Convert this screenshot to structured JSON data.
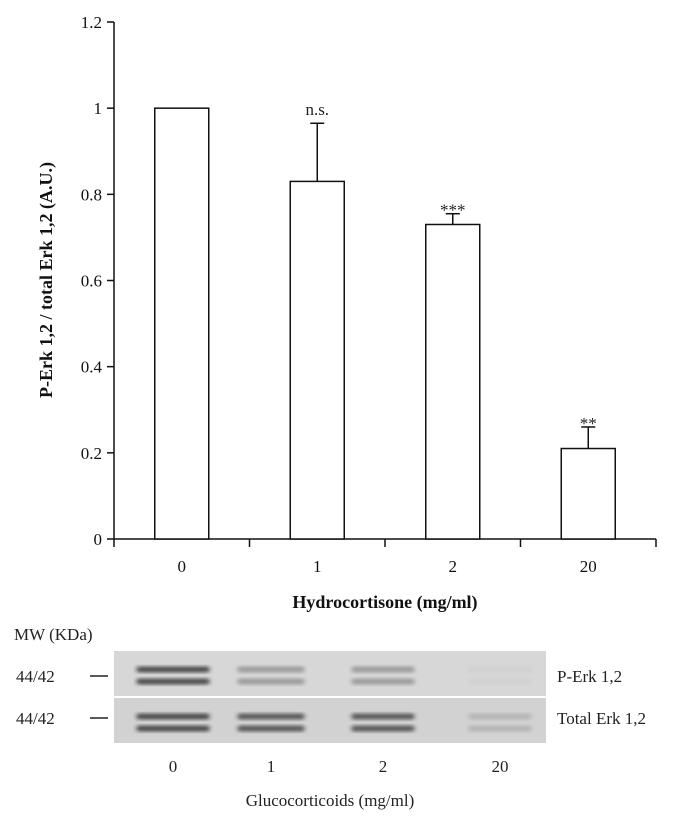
{
  "chart_data": {
    "type": "bar",
    "categories": [
      "0",
      "1",
      "2",
      "20"
    ],
    "values": [
      1.0,
      0.83,
      0.73,
      0.21
    ],
    "errors": [
      0,
      0.135,
      0.025,
      0.05
    ],
    "annotations": [
      "",
      "n.s.",
      "***",
      "**"
    ],
    "xlabel": "Hydrocortisone (mg/ml)",
    "ylabel": "P-Erk 1,2 / total Erk 1,2 (A.U.)",
    "ylim": [
      0,
      1.2
    ],
    "yticks": [
      "0",
      "0.2",
      "0.4",
      "0.6",
      "0.8",
      "1",
      "1.2"
    ],
    "grid": false
  },
  "blot": {
    "mw_label": "MW (KDa)",
    "rows": [
      {
        "marker": "44/42",
        "label": "P-Erk 1,2",
        "intensities": [
          0.95,
          0.55,
          0.55,
          0.08
        ]
      },
      {
        "marker": "44/42",
        "label": "Total Erk 1,2",
        "intensities": [
          0.95,
          0.9,
          0.9,
          0.35
        ]
      }
    ],
    "lanes": [
      "0",
      "1",
      "2",
      "20"
    ],
    "xlabel": "Glucocorticoids (mg/ml)"
  }
}
